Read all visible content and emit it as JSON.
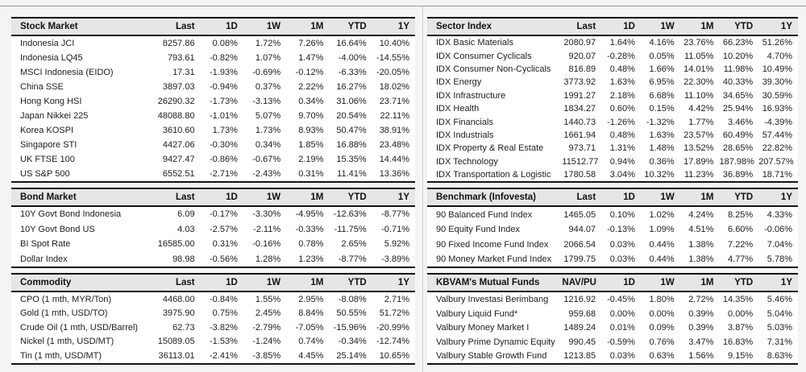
{
  "colors": {
    "header_bg": "#e6e6e6",
    "rule": "#141414",
    "page_bg": "#f4f4f4",
    "divider_line": "#cfcfcf"
  },
  "tables": {
    "stock_market": {
      "columns": [
        "Stock Market",
        "Last",
        "1D",
        "1W",
        "1M",
        "YTD",
        "1Y"
      ],
      "rows": [
        [
          "Indonesia JCI",
          "8257.86",
          "0.08%",
          "1.72%",
          "7.26%",
          "16.64%",
          "10.40%"
        ],
        [
          "Indonesia LQ45",
          "793.61",
          "-0.82%",
          "1.07%",
          "1.47%",
          "-4.00%",
          "-14.55%"
        ],
        [
          "MSCI Indonesia (EIDO)",
          "17.31",
          "-1.93%",
          "-0.69%",
          "-0.12%",
          "-6.33%",
          "-20.05%"
        ],
        [
          "China SSE",
          "3897.03",
          "-0.94%",
          "0.37%",
          "2.22%",
          "16.27%",
          "18.02%"
        ],
        [
          "Hong Kong HSI",
          "26290.32",
          "-1.73%",
          "-3.13%",
          "0.34%",
          "31.06%",
          "23.71%"
        ],
        [
          "Japan Nikkei 225",
          "48088.80",
          "-1.01%",
          "5.07%",
          "9.70%",
          "20.54%",
          "22.11%"
        ],
        [
          "Korea KOSPI",
          "3610.60",
          "1.73%",
          "1.73%",
          "8.93%",
          "50.47%",
          "38.91%"
        ],
        [
          "Singapore STI",
          "4427.06",
          "-0.30%",
          "0.34%",
          "1.85%",
          "16.88%",
          "23.48%"
        ],
        [
          "UK FTSE 100",
          "9427.47",
          "-0.86%",
          "-0.67%",
          "2.19%",
          "15.35%",
          "14.44%"
        ],
        [
          "US S&P 500",
          "6552.51",
          "-2.71%",
          "-2.43%",
          "0.31%",
          "11.41%",
          "13.36%"
        ]
      ]
    },
    "bond_market": {
      "columns": [
        "Bond Market",
        "Last",
        "1D",
        "1W",
        "1M",
        "YTD",
        "1Y"
      ],
      "rows": [
        [
          "10Y Govt Bond Indonesia",
          "6.09",
          "-0.17%",
          "-3.30%",
          "-4.95%",
          "-12.63%",
          "-8.77%"
        ],
        [
          "10Y Govt Bond US",
          "4.03",
          "-2.57%",
          "-2.11%",
          "-0.33%",
          "-11.75%",
          "-0.71%"
        ],
        [
          "BI Spot Rate",
          "16585.00",
          "0.31%",
          "-0.16%",
          "0.78%",
          "2.65%",
          "5.92%"
        ],
        [
          "Dollar Index",
          "98.98",
          "-0.56%",
          "1.28%",
          "1.23%",
          "-8.77%",
          "-3.89%"
        ]
      ]
    },
    "commodity": {
      "columns": [
        "Commodity",
        "Last",
        "1D",
        "1W",
        "1M",
        "YTD",
        "1Y"
      ],
      "rows": [
        [
          "CPO (1 mth, MYR/Ton)",
          "4468.00",
          "-0.84%",
          "1.55%",
          "2.95%",
          "-8.08%",
          "2.71%"
        ],
        [
          "Gold (1 mth, USD/TO)",
          "3975.90",
          "0.75%",
          "2.45%",
          "8.84%",
          "50.55%",
          "51.72%"
        ],
        [
          "Crude Oil (1 mth, USD/Barrel)",
          "62.73",
          "-3.82%",
          "-2.79%",
          "-7.05%",
          "-15.96%",
          "-20.99%"
        ],
        [
          "Nickel (1 mth, USD/MT)",
          "15089.05",
          "-1.53%",
          "-1.24%",
          "0.74%",
          "-0.34%",
          "-12.74%"
        ],
        [
          "Tin (1 mth, USD/MT)",
          "36113.01",
          "-2.41%",
          "-3.85%",
          "4.45%",
          "25.14%",
          "10.65%"
        ]
      ]
    },
    "sector_index": {
      "columns": [
        "Sector Index",
        "Last",
        "1D",
        "1W",
        "1M",
        "YTD",
        "1Y"
      ],
      "rows": [
        [
          "IDX Basic Materials",
          "2080.97",
          "1.64%",
          "4.16%",
          "23.76%",
          "66.23%",
          "51.26%"
        ],
        [
          "IDX Consumer Cyclicals",
          "920.07",
          "-0.28%",
          "0.05%",
          "11.05%",
          "10.20%",
          "4.70%"
        ],
        [
          "IDX Consumer Non-Cyclicals",
          "816.89",
          "0.48%",
          "1.66%",
          "14.01%",
          "11.98%",
          "10.49%"
        ],
        [
          "IDX Energy",
          "3773.92",
          "1.63%",
          "6.95%",
          "22.30%",
          "40.33%",
          "39.30%"
        ],
        [
          "IDX Infrastructure",
          "1991.27",
          "2.18%",
          "6.68%",
          "11.10%",
          "34.65%",
          "30.59%"
        ],
        [
          "IDX Health",
          "1834.27",
          "0.60%",
          "0.15%",
          "4.42%",
          "25.94%",
          "16.93%"
        ],
        [
          "IDX Financials",
          "1440.73",
          "-1.26%",
          "-1.32%",
          "1.77%",
          "3.46%",
          "-4.39%"
        ],
        [
          "IDX Industrials",
          "1661.94",
          "0.48%",
          "1.63%",
          "23.57%",
          "60.49%",
          "57.44%"
        ],
        [
          "IDX Property & Real Estate",
          "973.71",
          "1.31%",
          "1.48%",
          "13.52%",
          "28.65%",
          "22.82%"
        ],
        [
          "IDX Technology",
          "11512.77",
          "0.94%",
          "0.36%",
          "17.89%",
          "187.98%",
          "207.57%"
        ],
        [
          "IDX Transportation & Logistic",
          "1780.58",
          "3.04%",
          "10.32%",
          "11.23%",
          "36.89%",
          "18.71%"
        ]
      ]
    },
    "benchmark": {
      "columns": [
        "Benchmark (Infovesta)",
        "Last",
        "1D",
        "1W",
        "1M",
        "YTD",
        "1Y"
      ],
      "rows": [
        [
          "90 Balanced Fund Index",
          "1465.05",
          "0.10%",
          "1.02%",
          "4.24%",
          "8.25%",
          "4.33%"
        ],
        [
          "90 Equity Fund Index",
          "944.07",
          "-0.13%",
          "1.09%",
          "4.51%",
          "6.60%",
          "-0.06%"
        ],
        [
          "90 Fixed Income Fund Index",
          "2066.54",
          "0.03%",
          "0.44%",
          "1.38%",
          "7.22%",
          "7.04%"
        ],
        [
          "90 Money Market Fund Index",
          "1799.75",
          "0.03%",
          "0.44%",
          "1.38%",
          "4.77%",
          "5.78%"
        ]
      ]
    },
    "mutual_funds": {
      "columns": [
        "KBVAM's Mutual Funds",
        "NAV/PU",
        "1D",
        "1W",
        "1M",
        "YTD",
        "1Y"
      ],
      "rows": [
        [
          "Valbury Investasi Berimbang",
          "1216.92",
          "-0.45%",
          "1.80%",
          "2.72%",
          "14.35%",
          "5.46%"
        ],
        [
          "Valbury Liquid Fund*",
          "959.68",
          "0.00%",
          "0.00%",
          "0.39%",
          "0.00%",
          "5.04%"
        ],
        [
          "Valbury Money Market I",
          "1489.24",
          "0.01%",
          "0.09%",
          "0.39%",
          "3.87%",
          "5.03%"
        ],
        [
          "Valbury Prime Dynamic Equity",
          "990.45",
          "-0.59%",
          "0.76%",
          "3.47%",
          "16.83%",
          "7.31%"
        ],
        [
          "Valbury Stable Growth Fund",
          "1213.85",
          "0.03%",
          "0.63%",
          "1.56%",
          "9.15%",
          "8.63%"
        ]
      ]
    }
  }
}
